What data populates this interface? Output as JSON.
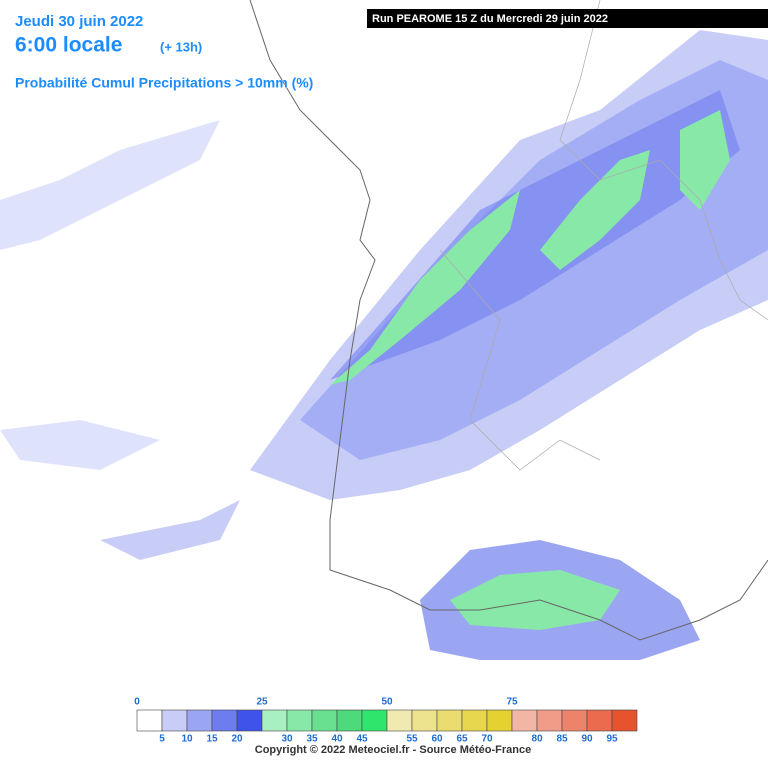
{
  "header": {
    "date": "Jeudi 30 juin 2022",
    "time": "6:00 locale",
    "lead": "(+ 13h)",
    "product": "Probabilité Cumul Precipitations > 10mm (%)",
    "run": "Run PEAROME 15 Z du Mercredi 29 juin 2022"
  },
  "legend": {
    "colors": [
      "#ffffff",
      "#c8cdf8",
      "#9ba6f3",
      "#6d7cee",
      "#3d53ea",
      "#a8efc2",
      "#88e8a8",
      "#68e090",
      "#4cda7a",
      "#30e56c",
      "#f0eab0",
      "#ede28e",
      "#eadc6e",
      "#e7d74e",
      "#e4d230",
      "#f2b6a6",
      "#f09c88",
      "#ed836a",
      "#ea6b4d",
      "#e8532f"
    ],
    "top_labels": [
      "0",
      "25",
      "50",
      "75"
    ],
    "bottom_labels": [
      "5",
      "10",
      "15",
      "20",
      "30",
      "35",
      "40",
      "45",
      "55",
      "60",
      "65",
      "70",
      "80",
      "85",
      "90",
      "95"
    ]
  },
  "footer": {
    "copyright": "Copyright © 2022 Meteociel.fr - Source Météo-France"
  }
}
